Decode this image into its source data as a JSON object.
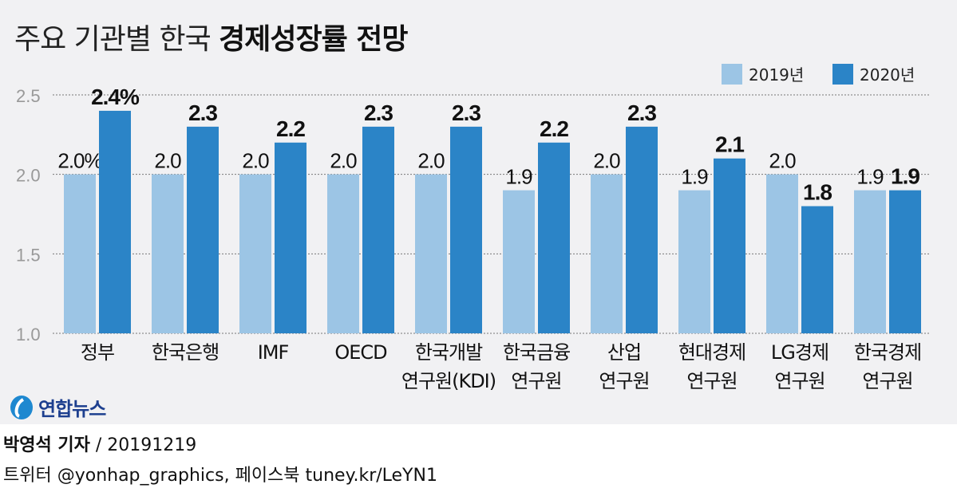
{
  "chart_data": {
    "type": "bar",
    "title_regular": "주요 기관별 한국 ",
    "title_bold": "경제성장률 전망",
    "categories": [
      [
        "정부"
      ],
      [
        "한국은행"
      ],
      [
        "IMF"
      ],
      [
        "OECD"
      ],
      [
        "한국개발",
        "연구원(KDI)"
      ],
      [
        "한국금융",
        "연구원"
      ],
      [
        "산업",
        "연구원"
      ],
      [
        "현대경제",
        "연구원"
      ],
      [
        "LG경제",
        "연구원"
      ],
      [
        "한국경제",
        "연구원"
      ]
    ],
    "series": [
      {
        "name": "2019년",
        "color": "#9cc5e5",
        "values": [
          2.0,
          2.0,
          2.0,
          2.0,
          2.0,
          1.9,
          2.0,
          1.9,
          2.0,
          1.9
        ],
        "labels": [
          "2.0%",
          "2.0",
          "2.0",
          "2.0",
          "2.0",
          "1.9",
          "2.0",
          "1.9",
          "2.0",
          "1.9"
        ]
      },
      {
        "name": "2020년",
        "color": "#2b84c7",
        "values": [
          2.4,
          2.3,
          2.2,
          2.3,
          2.3,
          2.2,
          2.3,
          2.1,
          1.8,
          1.9
        ],
        "labels": [
          "2.4%",
          "2.3",
          "2.2",
          "2.3",
          "2.3",
          "2.2",
          "2.3",
          "2.1",
          "1.8",
          "1.9"
        ]
      }
    ],
    "yticks": [
      "1.0",
      "1.5",
      "2.0",
      "2.5"
    ],
    "ylim": [
      1.0,
      2.5
    ],
    "grid": true,
    "legend": "top-right"
  },
  "logo": "연합뉴스",
  "footer": {
    "author": "박영석 기자",
    "date": " / 20191219",
    "social": "트위터 @yonhap_graphics, 페이스북 tuney.kr/LeYN1"
  }
}
